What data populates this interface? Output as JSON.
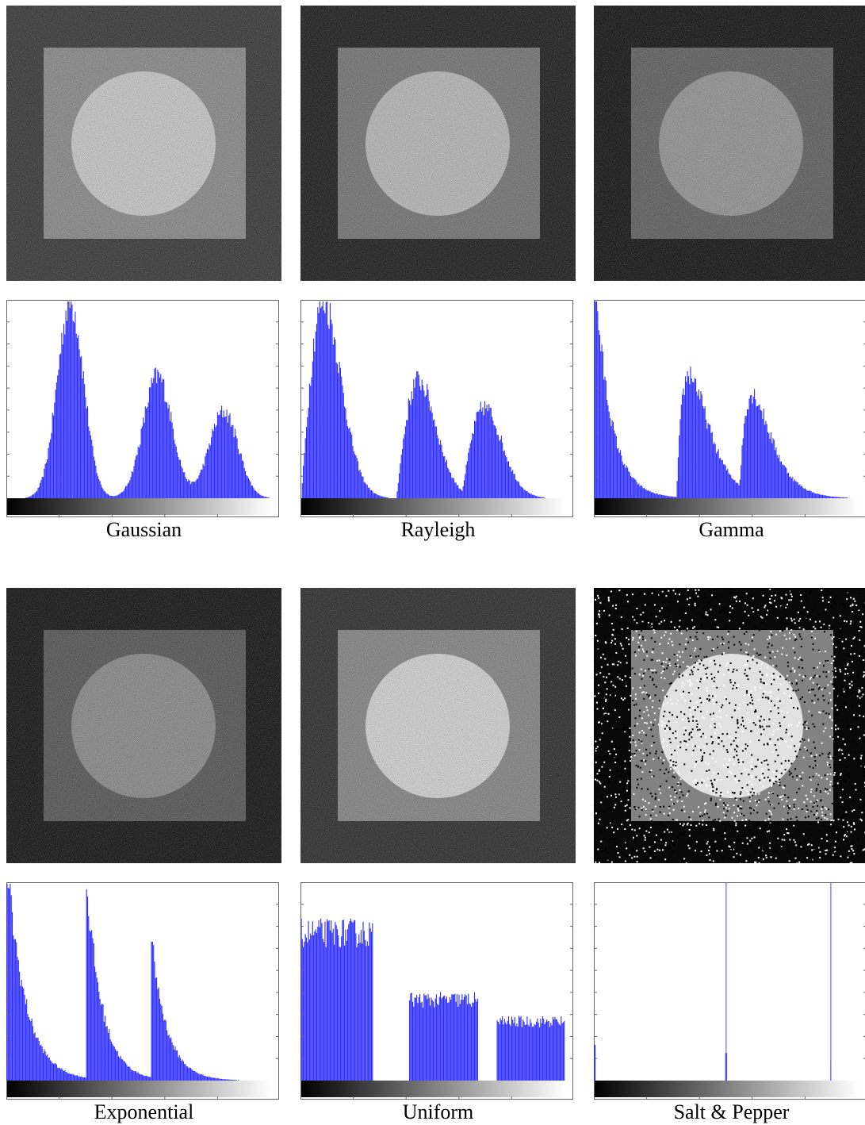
{
  "panels": [
    {
      "label": "Gaussian"
    },
    {
      "label": "Rayleigh"
    },
    {
      "label": "Gamma"
    },
    {
      "label": "Exponential"
    },
    {
      "label": "Uniform"
    },
    {
      "label": "Salt & Pepper"
    }
  ]
}
